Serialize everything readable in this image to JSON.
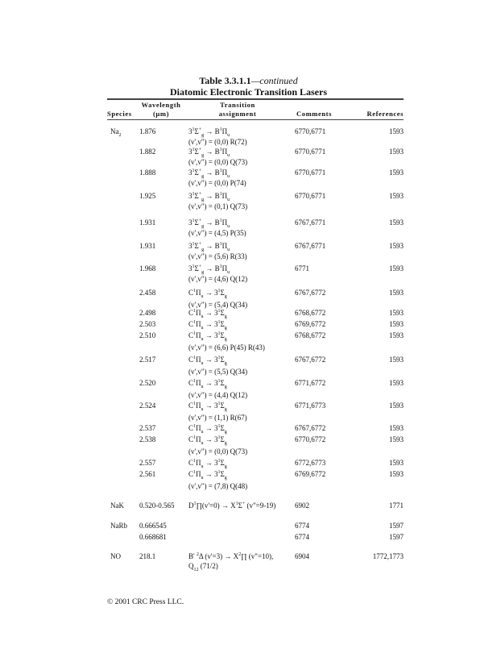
{
  "title": "Table 3.3.1.1",
  "title_suffix": "—continued",
  "subtitle": "Diatomic Electronic Transition Lasers",
  "headers": {
    "species": "Species",
    "wavelength": "Wavelength",
    "wavelength_unit": "(µm)",
    "transition": "Transition",
    "transition_2": "assignment",
    "comments": "Comments",
    "references": "References"
  },
  "rows": [
    {
      "species": "Na_{2}",
      "wavelength": "1.876",
      "transition": "3^{1}Σ^{+}_{g} → B^{1}Π_{u}",
      "note": "(v',v\") = (0,0) R(72)",
      "comments": "6770,6771",
      "references": "1593"
    },
    {
      "species": "",
      "wavelength": "1.882",
      "transition": "3^{1}Σ^{+}_{g} → B^{1}Π_{u}",
      "note": "(v',v\") = (0,0) Q(73)",
      "comments": "6770,6771",
      "references": "1593"
    },
    {
      "species": "",
      "wavelength": "1.888",
      "transition": "3^{1}Σ^{+}_{g} → B^{1}Π_{u}",
      "note": "(v',v\") = (0,0) P(74)",
      "comments": "6770,6771",
      "references": "1593"
    },
    {
      "species": "",
      "wavelength": "1.925",
      "transition": "3^{1}Σ^{+}_{g} → B^{1}Π_{u}",
      "note": "(v',v\") = (0,1) Q(73)",
      "comments": "6770,6771",
      "references": "1593"
    },
    {
      "species": "",
      "wavelength": "1.931",
      "transition": "3^{1}Σ^{+}_{g} → B^{1}Π_{u}",
      "note": "(v',v\") = (4,5) P(35)",
      "comments": "6767,6771",
      "references": "1593"
    },
    {
      "species": "",
      "wavelength": "1.931",
      "transition": "3^{1}Σ^{+}_{g} → B^{1}Π_{u}",
      "note": "(v',v\") = (5,6) R(33)",
      "comments": "6767,6771",
      "references": "1593"
    },
    {
      "species": "",
      "wavelength": "1.968",
      "transition": "3^{1}Σ^{+}_{g} → B^{1}Π_{u}",
      "note": "(v',v\") = (4,6) Q(12)",
      "comments": "6771",
      "references": "1593"
    },
    {
      "species": "",
      "wavelength": "2.458",
      "transition": "C^{1}Π_{u} → 3^{1}Σ_{g}",
      "note": "(v',v\") = (5,4) Q(34)",
      "comments": "6767,6772",
      "references": "1593"
    },
    {
      "species": "",
      "wavelength": "2.498",
      "transition": "C^{1}Π_{u} → 3^{1}Σ_{g}",
      "note": "",
      "comments": "6768,6772",
      "references": "1593"
    },
    {
      "species": "",
      "wavelength": "2.503",
      "transition": "C^{1}Π_{u} → 3^{1}Σ_{g}",
      "note": "",
      "comments": "6769,6772",
      "references": "1593"
    },
    {
      "species": "",
      "wavelength": "2.510",
      "transition": "C^{1}Π_{u} → 3^{1}Σ_{g}",
      "note": "(v',v\") = (6,6) P(45) R(43)",
      "comments": "6768,6772",
      "references": "1593"
    },
    {
      "species": "",
      "wavelength": "2.517",
      "transition": "C^{1}Π_{u} → 3^{1}Σ_{g}",
      "note": "(v',v\") = (5,5) Q(34)",
      "comments": "6767,6772",
      "references": "1593"
    },
    {
      "species": "",
      "wavelength": "2.520",
      "transition": "C^{1}Π_{u} → 3^{1}Σ_{g}",
      "note": "(v',v\") = (4,4) Q(12)",
      "comments": "6771,6772",
      "references": "1593"
    },
    {
      "species": "",
      "wavelength": "2.524",
      "transition": "C^{1}Π_{u} → 3^{1}Σ_{g}",
      "note": "(v',v\") = (1,1) R(67)",
      "comments": "6771,6773",
      "references": "1593"
    },
    {
      "species": "",
      "wavelength": "2.537",
      "transition": "C^{1}Π_{u} → 3^{1}Σ_{g}",
      "note": "",
      "comments": "6767,6772",
      "references": "1593"
    },
    {
      "species": "",
      "wavelength": "2.538",
      "transition": "C^{1}Π_{u} → 3^{1}Σ_{g}",
      "note": "(v',v\") = (0,0) Q(73)",
      "comments": "6770,6772",
      "references": "1593"
    },
    {
      "species": "",
      "wavelength": "2.557",
      "transition": "C^{1}Π_{u} → 3^{1}Σ_{g}",
      "note": "",
      "comments": "6772,6773",
      "references": "1593"
    },
    {
      "species": "",
      "wavelength": "2.561",
      "transition": "C^{1}Π_{u} → 3^{1}Σ_{g}",
      "note": "(v',v\") = (7,8) Q(48)",
      "comments": "6769,6772",
      "references": "1593"
    },
    {
      "species": "NaK",
      "wavelength": "0.520-0.565",
      "transition": "D^{1}∏(v'=0) → X^{1}Σ^{+} (v\"=9-19)",
      "note": "",
      "comments": "6902",
      "references": "1771"
    },
    {
      "species": "NaRb",
      "wavelength": "0.666545",
      "transition": "",
      "note": "",
      "comments": "6774",
      "references": "1597"
    },
    {
      "species": "",
      "wavelength": "0.668681",
      "transition": "",
      "note": "",
      "comments": "6774",
      "references": "1597"
    },
    {
      "species": "NO",
      "wavelength": "218.1",
      "transition": "B' ^{2}Δ (v'=3) → X^{2}∏ (v\"=10),",
      "note": "Q_{12} (71/2)",
      "comments": "6904",
      "references": "1772,1773"
    }
  ],
  "footer": "© 2001 CRC Press LLC."
}
